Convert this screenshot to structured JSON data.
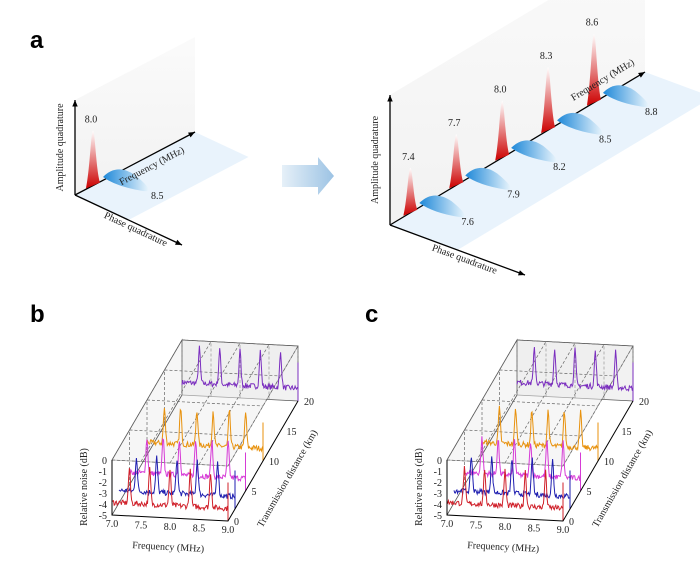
{
  "panel_a": {
    "label": "a",
    "left": {
      "amplitude_axis": "Amplitude quadrature",
      "frequency_axis": "Frequency (MHz)",
      "phase_axis": "Phase quadrature",
      "amplitude_peaks": [
        "8.0"
      ],
      "phase_peaks": [
        "8.5"
      ]
    },
    "right": {
      "amplitude_axis": "Amplitude quadrature",
      "frequency_axis": "Frequency (MHz)",
      "phase_axis": "Phase quadrature",
      "amplitude_peaks": [
        "7.4",
        "7.7",
        "8.0",
        "8.3",
        "8.6"
      ],
      "phase_peaks": [
        "7.6",
        "7.9",
        "8.2",
        "8.5",
        "8.8"
      ]
    }
  },
  "panel_b": {
    "label": "b",
    "y_axis": "Relative noise (dB)",
    "x_axis": "Frequency (MHz)",
    "z_axis": "Transmission distance (km)",
    "x_ticks": [
      "7.0",
      "7.5",
      "8.0",
      "8.5",
      "9.0"
    ],
    "y_ticks": [
      "0",
      "-1",
      "-2",
      "-3",
      "-4",
      "-5"
    ],
    "z_ticks": [
      "0",
      "5",
      "10",
      "15",
      "20"
    ]
  },
  "panel_c": {
    "label": "c",
    "y_axis": "Relative noise (dB)",
    "x_axis": "Frequency (MHz)",
    "z_axis": "Transmission distance (km)",
    "x_ticks": [
      "7.0",
      "7.5",
      "8.0",
      "8.5",
      "9.0"
    ],
    "y_ticks": [
      "0",
      "-1",
      "-2",
      "-3",
      "-4",
      "-5"
    ],
    "z_ticks": [
      "0",
      "5",
      "10",
      "15",
      "20"
    ]
  }
}
